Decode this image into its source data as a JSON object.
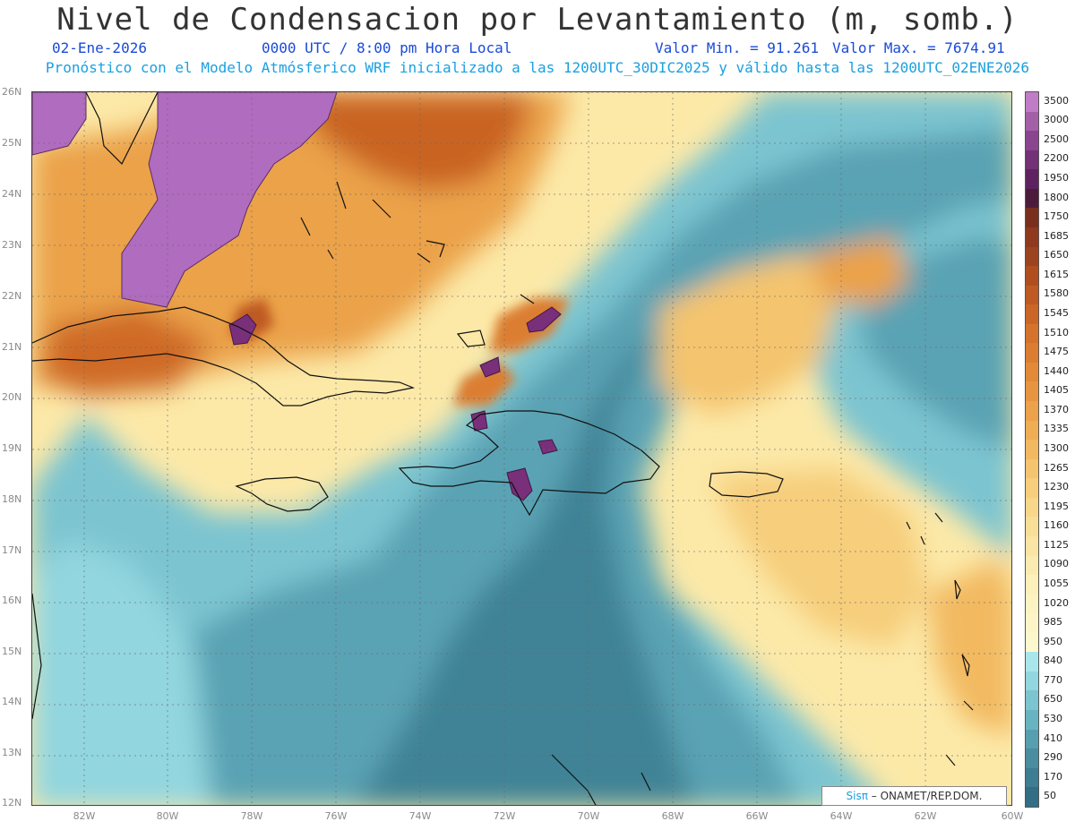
{
  "header": {
    "title": "Nivel de Condensacion por Levantamiento (m, somb.)",
    "date": "02-Ene-2026",
    "time": "0000 UTC / 8:00 pm Hora Local",
    "value_min": "Valor Min. = 91.261",
    "value_max": "Valor Max. = 7674.91",
    "model_info": "Pronóstico con el Modelo Atmósferico WRF inicializado a las 1200UTC_30DIC2025 y válido hasta las  1200UTC_02ENE2026"
  },
  "map": {
    "lat_labels": [
      "26N",
      "25N",
      "24N",
      "23N",
      "22N",
      "21N",
      "20N",
      "19N",
      "18N",
      "17N",
      "16N",
      "15N",
      "14N",
      "13N",
      "12N"
    ],
    "lon_labels": [
      "82W",
      "80W",
      "78W",
      "76W",
      "74W",
      "72W",
      "70W",
      "68W",
      "66W",
      "64W",
      "62W",
      "60W"
    ]
  },
  "colorbar": {
    "labels": [
      "3500",
      "3000",
      "2500",
      "2200",
      "1950",
      "1800",
      "1750",
      "1685",
      "1650",
      "1615",
      "1580",
      "1545",
      "1510",
      "1475",
      "1440",
      "1405",
      "1370",
      "1335",
      "1300",
      "1265",
      "1230",
      "1195",
      "1160",
      "1125",
      "1090",
      "1055",
      "1020",
      "985",
      "950",
      "840",
      "770",
      "650",
      "530",
      "410",
      "290",
      "170",
      "50"
    ],
    "colors": [
      "#c07cc6",
      "#a35fa8",
      "#8a4490",
      "#733177",
      "#5e2260",
      "#4d1c3c",
      "#7a2f1e",
      "#8f3a1e",
      "#9e431f",
      "#b04e20",
      "#bf5a22",
      "#cb6626",
      "#d5722b",
      "#dc7e31",
      "#e28a38",
      "#e79540",
      "#eba24a",
      "#efae55",
      "#f2b961",
      "#f4c46e",
      "#f6ce7c",
      "#f8d78a",
      "#f9de97",
      "#fae5a4",
      "#fbebb0",
      "#fcf0bb",
      "#fcf3c3",
      "#fdf5c8",
      "#fdf7ce",
      "#a9e6ec",
      "#92d6df",
      "#7cc4d0",
      "#68b3c1",
      "#579fb0",
      "#4a8da0",
      "#3e7d92",
      "#326e85"
    ]
  },
  "credit": {
    "brand": "Sisπ",
    "org": "– ONAMET/REP.DOM."
  }
}
